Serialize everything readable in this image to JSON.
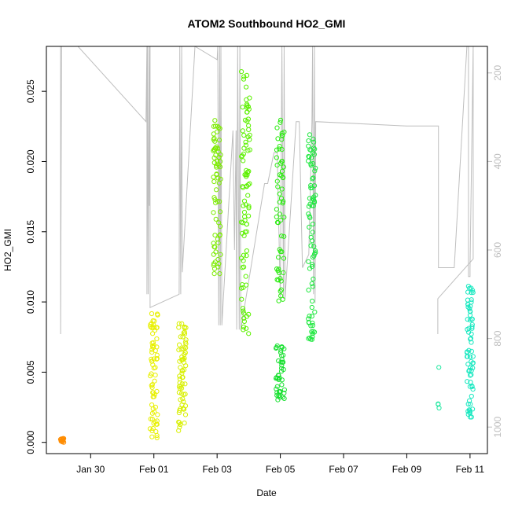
{
  "chart_data": {
    "type": "scatter",
    "title": "ATOM2 Southbound HO2_GMI",
    "xlabel": "Date",
    "ylabel": "HO2_GMI",
    "x_ticks": [
      "Jan 30",
      "Feb 01",
      "Feb 03",
      "Feb 05",
      "Feb 07",
      "Feb 09",
      "Feb 11"
    ],
    "x_tick_days": [
      0,
      2,
      4,
      6,
      8,
      10,
      12
    ],
    "xlim_days": [
      -1.4,
      12.55
    ],
    "y_ticks": [
      0.0,
      0.005,
      0.01,
      0.015,
      0.02,
      0.025
    ],
    "y_tick_labels": [
      "0.000",
      "0.005",
      "0.010",
      "0.015",
      "0.020",
      "0.025"
    ],
    "ylim": [
      -0.0008,
      0.0282
    ],
    "right_axis": {
      "label_color": "#bebebe",
      "ticks": [
        200,
        400,
        600,
        800,
        1000
      ],
      "tick_labels": [
        "200",
        "400",
        "600",
        "800",
        "1000"
      ],
      "lim": [
        140,
        1060
      ],
      "reversed": true
    },
    "grid": false,
    "flight_groups": [
      {
        "day": -0.9,
        "spread": 0.06,
        "y_min": 0.0,
        "y_max": 0.0003,
        "n": 16,
        "color": "#FF8C00"
      },
      {
        "day": 2.0,
        "spread": 0.12,
        "y_min": 0.0003,
        "y_max": 0.0092,
        "n": 70,
        "color": "#E8F000"
      },
      {
        "day": 2.9,
        "spread": 0.12,
        "y_min": 0.0008,
        "y_max": 0.0085,
        "n": 70,
        "color": "#D8F000"
      },
      {
        "day": 4.0,
        "spread": 0.12,
        "y_min": 0.012,
        "y_max": 0.023,
        "n": 70,
        "color": "#7CEB00"
      },
      {
        "day": 4.9,
        "spread": 0.14,
        "y_min": 0.0072,
        "y_max": 0.0265,
        "n": 90,
        "color": "#5CF000"
      },
      {
        "day": 6.0,
        "spread": 0.12,
        "y_min": 0.01,
        "y_max": 0.023,
        "n": 60,
        "color": "#2BEB10"
      },
      {
        "day": 6.0,
        "spread": 0.14,
        "y_min": 0.003,
        "y_max": 0.007,
        "n": 45,
        "color": "#18E030"
      },
      {
        "day": 7.0,
        "spread": 0.12,
        "y_min": 0.0073,
        "y_max": 0.0222,
        "n": 80,
        "color": "#20E840"
      },
      {
        "day": 11.0,
        "spread": 0.03,
        "y_min": 0.0019,
        "y_max": 0.0058,
        "n": 4,
        "color": "#20E8A0"
      },
      {
        "day": 12.0,
        "spread": 0.1,
        "y_min": 0.0018,
        "y_max": 0.0112,
        "n": 70,
        "color": "#18E8C0"
      }
    ],
    "altitude_path": [
      [
        -1.0,
        140
      ],
      [
        -0.95,
        140
      ],
      [
        -0.95,
        790
      ],
      [
        -0.92,
        140
      ],
      [
        -0.9,
        140
      ],
      [
        -0.4,
        140
      ],
      [
        1.75,
        310
      ],
      [
        1.78,
        140
      ],
      [
        1.78,
        700
      ],
      [
        1.8,
        140
      ],
      [
        1.82,
        700
      ],
      [
        1.85,
        140
      ],
      [
        1.86,
        500
      ],
      [
        1.88,
        140
      ],
      [
        1.88,
        730
      ],
      [
        2.8,
        700
      ],
      [
        2.82,
        140
      ],
      [
        2.85,
        700
      ],
      [
        2.88,
        140
      ],
      [
        2.9,
        650
      ],
      [
        3.3,
        140
      ],
      [
        4.0,
        170
      ],
      [
        4.02,
        140
      ],
      [
        4.05,
        770
      ],
      [
        4.08,
        140
      ],
      [
        4.1,
        770
      ],
      [
        4.12,
        140
      ],
      [
        4.15,
        770
      ],
      [
        4.5,
        330
      ],
      [
        4.55,
        600
      ],
      [
        4.6,
        330
      ],
      [
        4.62,
        780
      ],
      [
        4.65,
        140
      ],
      [
        4.7,
        780
      ],
      [
        4.72,
        140
      ],
      [
        4.75,
        780
      ],
      [
        5.0,
        670
      ],
      [
        5.5,
        450
      ],
      [
        5.6,
        450
      ],
      [
        5.8,
        380
      ],
      [
        5.9,
        380
      ],
      [
        6.0,
        710
      ],
      [
        6.05,
        140
      ],
      [
        6.1,
        710
      ],
      [
        6.12,
        140
      ],
      [
        6.15,
        710
      ],
      [
        6.5,
        310
      ],
      [
        6.6,
        310
      ],
      [
        6.7,
        640
      ],
      [
        6.9,
        610
      ],
      [
        7.0,
        310
      ],
      [
        7.02,
        140
      ],
      [
        7.05,
        700
      ],
      [
        7.08,
        140
      ],
      [
        7.1,
        720
      ],
      [
        7.12,
        310
      ],
      [
        10.0,
        320
      ],
      [
        11.0,
        320
      ],
      [
        11.0,
        640
      ],
      [
        11.5,
        640
      ],
      [
        11.9,
        140
      ],
      [
        11.95,
        140
      ],
      [
        11.95,
        660
      ],
      [
        12.0,
        660
      ],
      [
        12.0,
        640
      ],
      [
        12.1,
        140
      ],
      [
        12.1,
        620
      ],
      [
        10.98,
        710
      ],
      [
        10.98,
        790
      ]
    ]
  }
}
